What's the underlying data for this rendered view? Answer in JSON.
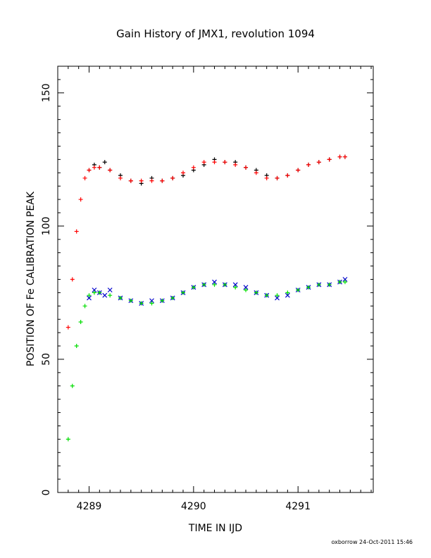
{
  "chart_data": {
    "type": "scatter",
    "title": "Gain History of JMX1, revolution 1094",
    "xlabel": "TIME IN IJD",
    "ylabel": "POSITION OF Fe CALIBRATION PEAK",
    "xlim": [
      4288.7,
      4291.72
    ],
    "ylim": [
      0,
      160
    ],
    "xticks": [
      4289,
      4290,
      4291
    ],
    "yticks": [
      0,
      50,
      100,
      150
    ],
    "grid": false,
    "footer": "oxborrow 24-Oct-2011 15:46",
    "series": [
      {
        "marker": "plus",
        "color": "#000000",
        "x": [
          4289.0,
          4289.05,
          4289.1,
          4289.15,
          4289.2,
          4289.3,
          4289.4,
          4289.5,
          4289.6,
          4289.7,
          4289.8,
          4289.9,
          4290.0,
          4290.1,
          4290.2,
          4290.3,
          4290.4,
          4290.5,
          4290.6,
          4290.7,
          4290.8,
          4290.9,
          4291.0,
          4291.1,
          4291.2,
          4291.3,
          4291.4,
          4291.45
        ],
        "values": [
          121,
          123,
          122,
          124,
          121,
          119,
          117,
          116,
          118,
          117,
          118,
          119,
          121,
          123,
          125,
          124,
          124,
          122,
          121,
          119,
          118,
          119,
          121,
          123,
          124,
          125,
          126,
          126
        ]
      },
      {
        "marker": "plus",
        "color": "#ff0000",
        "x": [
          4288.8,
          4288.84,
          4288.88,
          4288.92,
          4288.96,
          4289.0,
          4289.05,
          4289.1,
          4289.2,
          4289.3,
          4289.4,
          4289.5,
          4289.6,
          4289.7,
          4289.8,
          4289.9,
          4290.0,
          4290.1,
          4290.2,
          4290.3,
          4290.4,
          4290.5,
          4290.6,
          4290.7,
          4290.8,
          4290.9,
          4291.0,
          4291.1,
          4291.2,
          4291.3,
          4291.4,
          4291.45
        ],
        "values": [
          62,
          80,
          98,
          110,
          118,
          121,
          122,
          122,
          121,
          118,
          117,
          117,
          117,
          117,
          118,
          120,
          122,
          124,
          124,
          124,
          123,
          122,
          120,
          118,
          118,
          119,
          121,
          123,
          124,
          125,
          126,
          126
        ]
      },
      {
        "marker": "cross",
        "color": "#0000cc",
        "x": [
          4289.0,
          4289.05,
          4289.1,
          4289.15,
          4289.2,
          4289.3,
          4289.4,
          4289.5,
          4289.6,
          4289.7,
          4289.8,
          4289.9,
          4290.0,
          4290.1,
          4290.2,
          4290.3,
          4290.4,
          4290.5,
          4290.6,
          4290.7,
          4290.8,
          4290.9,
          4291.0,
          4291.1,
          4291.2,
          4291.3,
          4291.4,
          4291.45
        ],
        "values": [
          73,
          76,
          75,
          74,
          76,
          73,
          72,
          71,
          72,
          72,
          73,
          75,
          77,
          78,
          79,
          78,
          78,
          77,
          75,
          74,
          73,
          74,
          76,
          77,
          78,
          78,
          79,
          80
        ]
      },
      {
        "marker": "plus",
        "color": "#00dd00",
        "x": [
          4288.8,
          4288.84,
          4288.88,
          4288.92,
          4288.96,
          4289.0,
          4289.05,
          4289.1,
          4289.2,
          4289.3,
          4289.4,
          4289.5,
          4289.6,
          4289.7,
          4289.8,
          4289.9,
          4290.0,
          4290.1,
          4290.2,
          4290.3,
          4290.4,
          4290.5,
          4290.6,
          4290.7,
          4290.8,
          4290.9,
          4291.0,
          4291.1,
          4291.2,
          4291.3,
          4291.4,
          4291.45
        ],
        "values": [
          20,
          40,
          55,
          64,
          70,
          74,
          75,
          75,
          74,
          73,
          72,
          71,
          71,
          72,
          73,
          75,
          77,
          78,
          78,
          78,
          77,
          76,
          75,
          74,
          74,
          75,
          76,
          77,
          78,
          78,
          79,
          79
        ]
      }
    ]
  }
}
